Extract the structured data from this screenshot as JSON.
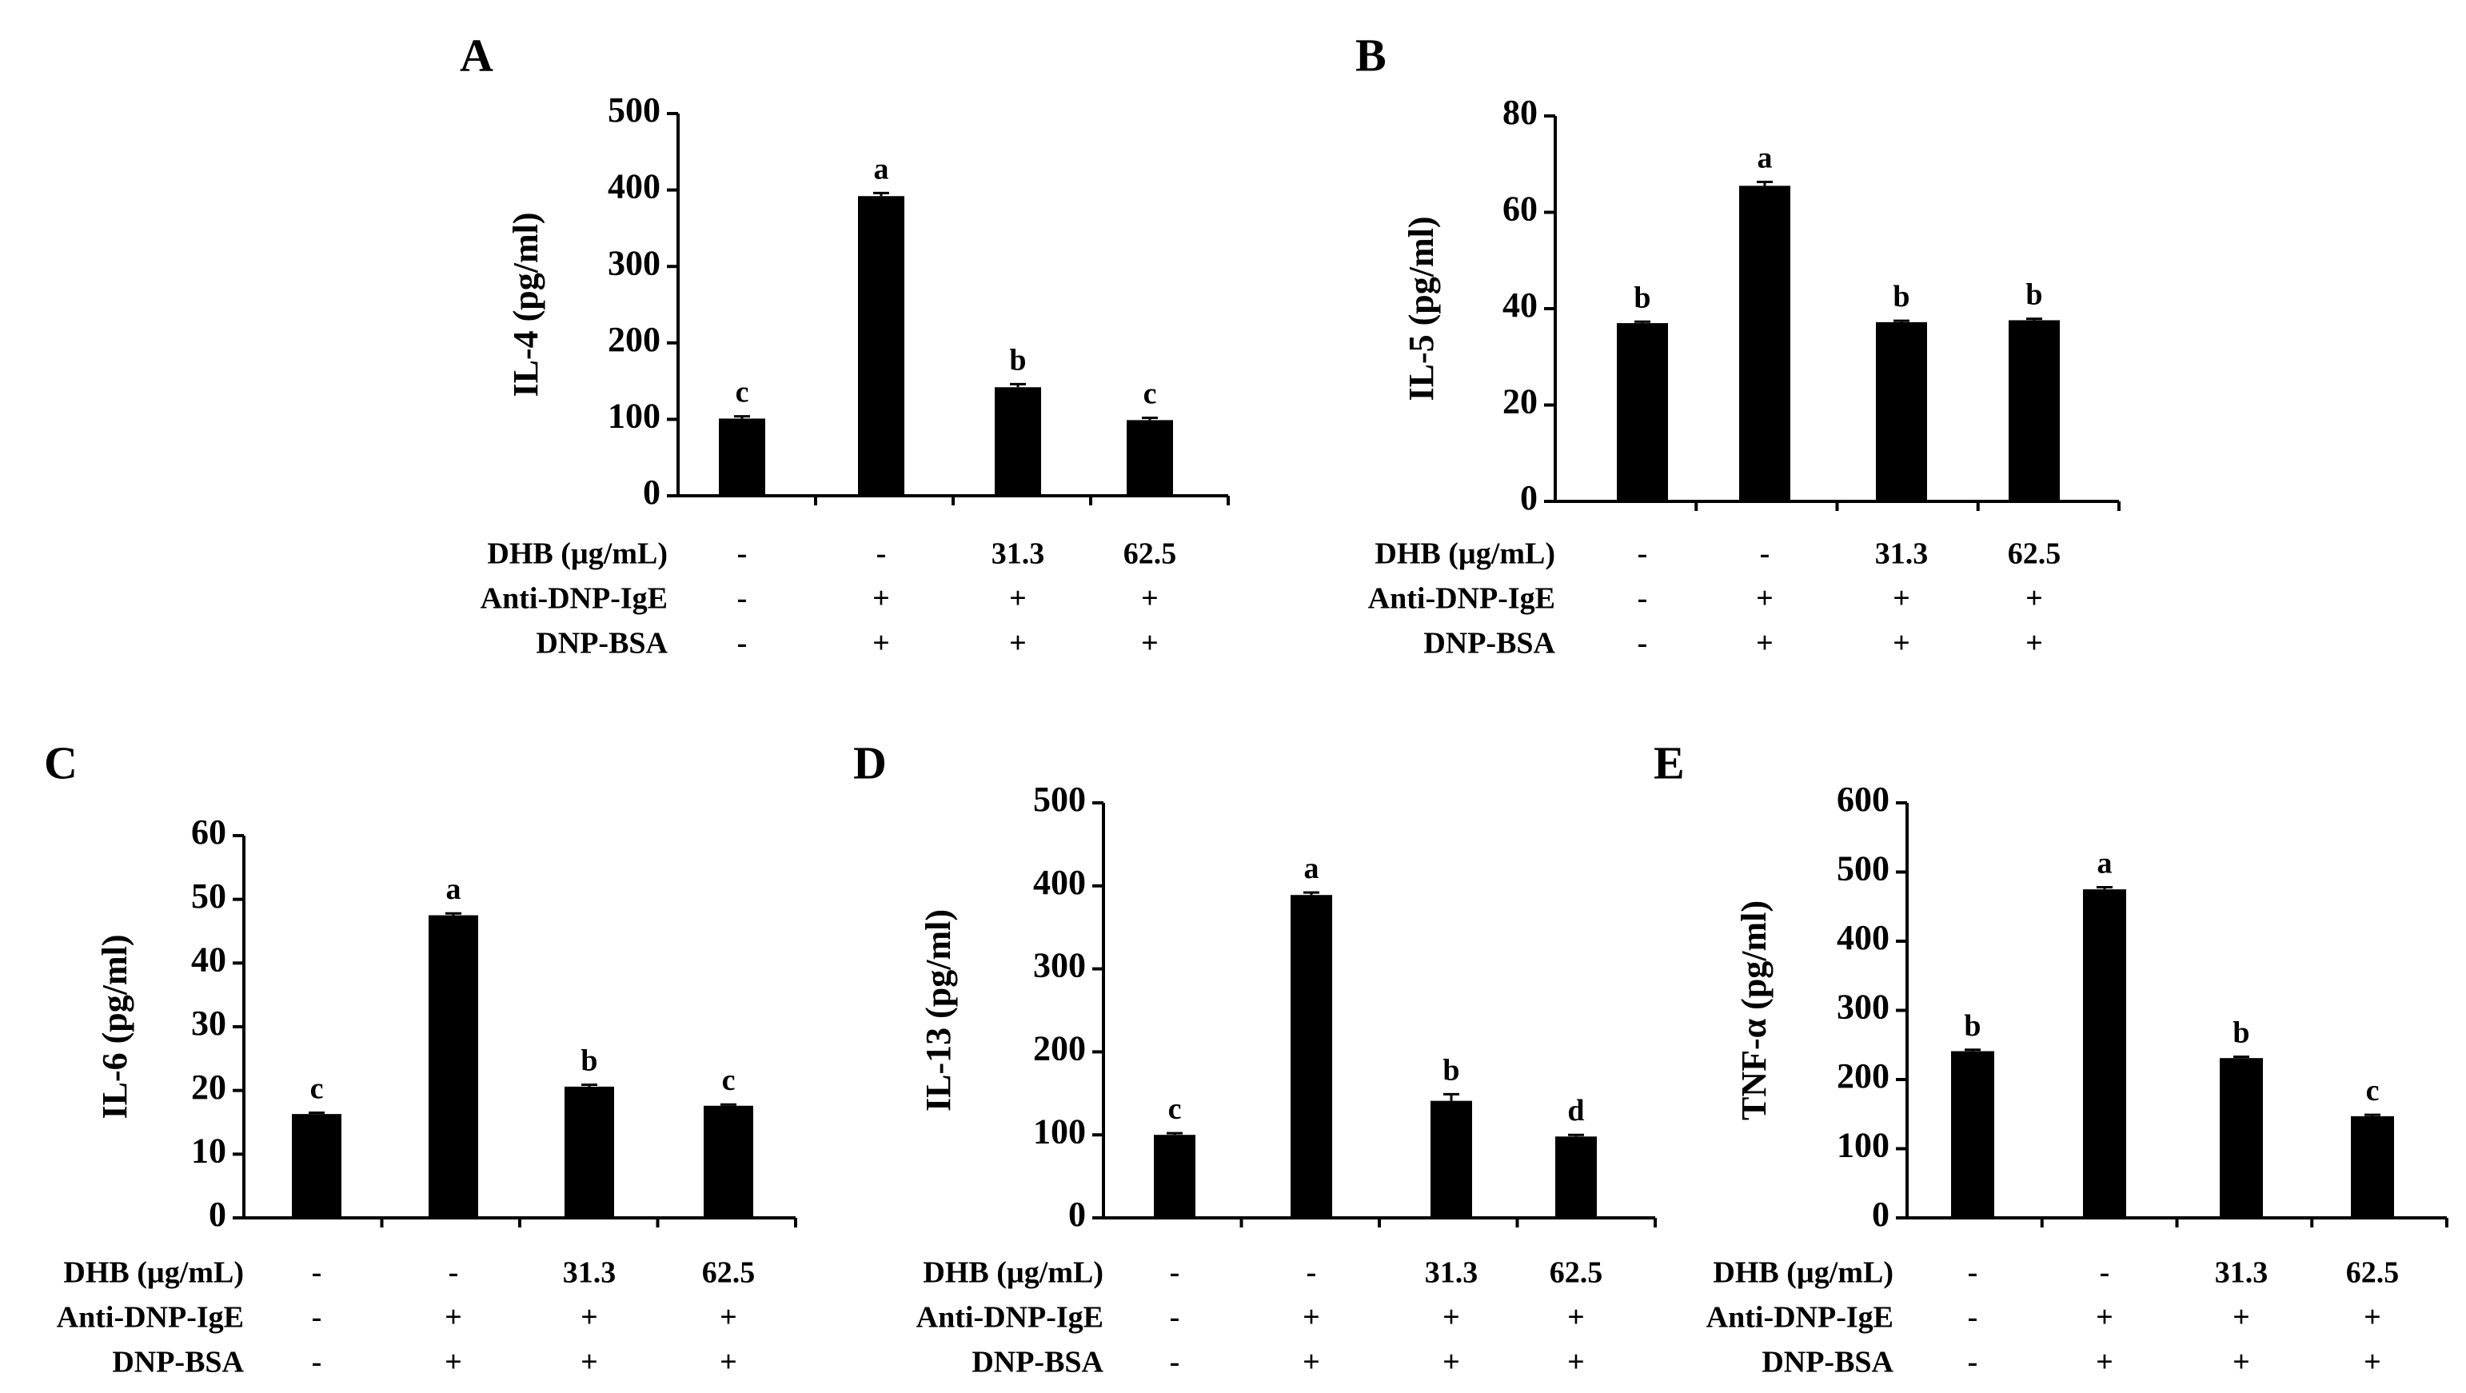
{
  "figure": {
    "row_labels": [
      "DHB (µg/mL)",
      "Anti-DNP-IgE",
      "DNP-BSA"
    ],
    "conditions": [
      [
        "-",
        "-",
        "31.3",
        "62.5"
      ],
      [
        "-",
        "+",
        "+",
        "+"
      ],
      [
        "-",
        "+",
        "+",
        "+"
      ]
    ]
  },
  "chart_data": [
    {
      "panel": "A",
      "type": "bar",
      "title": "",
      "ylabel": "IL-4 (pg/ml)",
      "ylim": [
        0,
        500
      ],
      "yticks": [
        0,
        100,
        200,
        300,
        400,
        500
      ],
      "values": [
        101,
        392,
        142,
        99
      ],
      "errors": [
        3,
        4,
        4,
        3
      ],
      "letters": [
        "c",
        "a",
        "b",
        "c"
      ]
    },
    {
      "panel": "B",
      "type": "bar",
      "title": "",
      "ylabel": "IL-5 (pg/ml)",
      "ylim": [
        0,
        80
      ],
      "yticks": [
        0,
        20,
        40,
        60,
        80
      ],
      "values": [
        37,
        65.5,
        37.2,
        37.6
      ],
      "errors": [
        0.3,
        0.8,
        0.3,
        0.3
      ],
      "letters": [
        "b",
        "a",
        "b",
        "b"
      ]
    },
    {
      "panel": "C",
      "type": "bar",
      "title": "",
      "ylabel": "IL-6 (pg/ml)",
      "ylim": [
        0,
        60
      ],
      "yticks": [
        0,
        10,
        20,
        30,
        40,
        50,
        60
      ],
      "values": [
        16.3,
        47.5,
        20.6,
        17.6
      ],
      "errors": [
        0.2,
        0.3,
        0.3,
        0.2
      ],
      "letters": [
        "c",
        "a",
        "b",
        "c"
      ]
    },
    {
      "panel": "D",
      "type": "bar",
      "title": "",
      "ylabel": "IL-13 (pg/ml)",
      "ylim": [
        0,
        500
      ],
      "yticks": [
        0,
        100,
        200,
        300,
        400,
        500
      ],
      "values": [
        100,
        389,
        141,
        98
      ],
      "errors": [
        2,
        3,
        8,
        2
      ],
      "letters": [
        "c",
        "a",
        "b",
        "d"
      ]
    },
    {
      "panel": "E",
      "type": "bar",
      "title": "",
      "ylabel": "TNF-α (pg/ml)",
      "ylim": [
        0,
        600
      ],
      "yticks": [
        0,
        100,
        200,
        300,
        400,
        500,
        600
      ],
      "values": [
        241,
        475,
        231,
        147
      ],
      "errors": [
        2,
        3,
        2,
        2
      ],
      "letters": [
        "b",
        "a",
        "b",
        "c"
      ]
    }
  ]
}
